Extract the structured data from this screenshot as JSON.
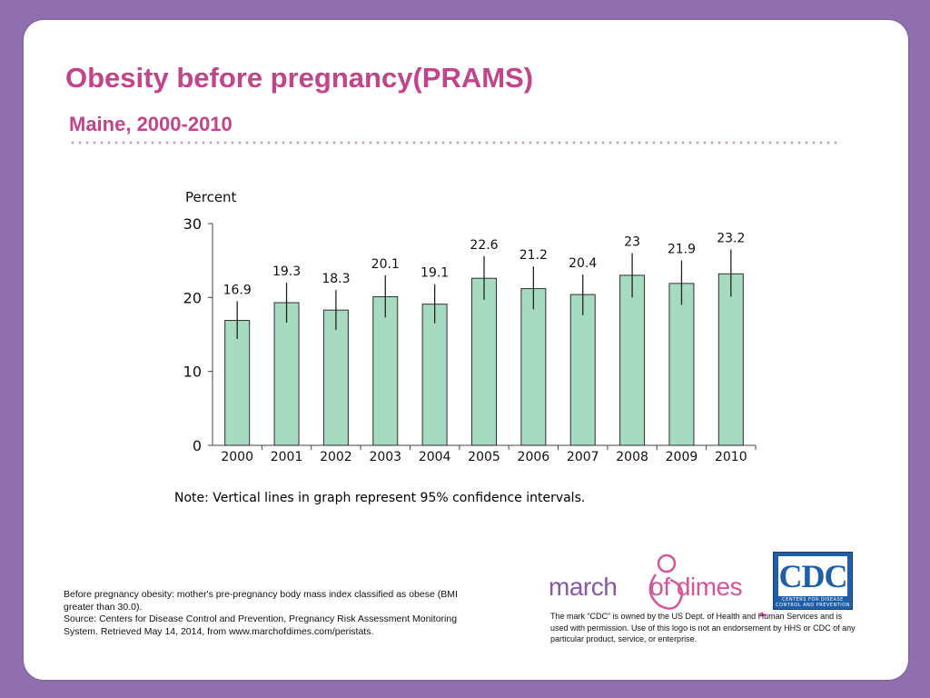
{
  "slide": {
    "title": "Obesity before pregnancy(PRAMS)",
    "subtitle": "Maine, 2000-2010",
    "note": "Note: Vertical lines in graph represent 95% confidence intervals.",
    "footnote_lines": [
      "Before pregnancy obesity: mother's pre-pregnancy body mass index classified as obese (BMI greater than 30.0).",
      "Source: Centers for Disease Control and Prevention, Pregnancy Risk Assessment Monitoring System. Retrieved May 14, 2014, from www.marchofdimes.com/peristats."
    ],
    "cdc_disclaimer": "The mark “CDC” is owned by the US Dept. of Health and Human Services and is used with permission. Use of this logo is not an endorsement by HHS or CDC of any particular product, service, or enterprise."
  },
  "logos": {
    "march_of_dimes": {
      "word1": "march",
      "word2": "of dimes"
    },
    "cdc": {
      "mark": "CDC",
      "sub": "CENTERS FOR DISEASE CONTROL AND PREVENTION"
    }
  },
  "colors": {
    "title": "#c2448a",
    "bar_fill": "#a6dbc2",
    "bar_stroke": "#2e2e2e",
    "background": "#8f6fad"
  },
  "chart_data": {
    "type": "bar",
    "ylabel": "Percent",
    "ylim": [
      0,
      30
    ],
    "yticks": [
      0,
      10,
      20,
      30
    ],
    "categories": [
      "2000",
      "2001",
      "2002",
      "2003",
      "2004",
      "2005",
      "2006",
      "2007",
      "2008",
      "2009",
      "2010"
    ],
    "values": [
      16.9,
      19.3,
      18.3,
      20.1,
      19.1,
      22.6,
      21.2,
      20.4,
      23,
      21.9,
      23.2
    ],
    "value_labels": [
      "16.9",
      "19.3",
      "18.3",
      "20.1",
      "19.1",
      "22.6",
      "21.2",
      "20.4",
      "23",
      "21.9",
      "23.2"
    ],
    "ci_lower": [
      14.4,
      16.6,
      15.6,
      17.3,
      16.5,
      19.7,
      18.4,
      17.6,
      20.0,
      19.0,
      20.1
    ],
    "ci_upper": [
      19.5,
      22.0,
      21.0,
      23.0,
      21.8,
      25.6,
      24.2,
      23.1,
      26.0,
      25.0,
      26.5
    ],
    "grid": false,
    "legend": "none"
  }
}
